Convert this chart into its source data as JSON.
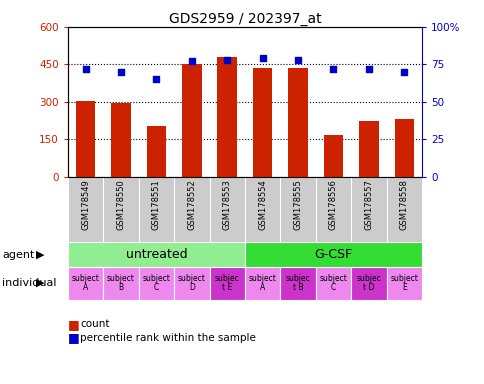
{
  "title": "GDS2959 / 202397_at",
  "samples": [
    "GSM178549",
    "GSM178550",
    "GSM178551",
    "GSM178552",
    "GSM178553",
    "GSM178554",
    "GSM178555",
    "GSM178556",
    "GSM178557",
    "GSM178558"
  ],
  "bar_values": [
    305,
    297,
    205,
    450,
    480,
    435,
    435,
    168,
    225,
    230
  ],
  "dot_values_pct": [
    72,
    70,
    65,
    77,
    78,
    79,
    78,
    72,
    72,
    70
  ],
  "bar_color": "#cc2200",
  "dot_color": "#0000cc",
  "ylim_left": [
    0,
    600
  ],
  "ylim_right": [
    0,
    100
  ],
  "yticks_left": [
    0,
    150,
    300,
    450,
    600
  ],
  "yticks_right": [
    0,
    25,
    50,
    75,
    100
  ],
  "agent_groups": [
    {
      "label": "untreated",
      "start": 0,
      "end": 5,
      "color": "#90ee90"
    },
    {
      "label": "G-CSF",
      "start": 5,
      "end": 10,
      "color": "#33dd33"
    }
  ],
  "individual_labels": [
    "subject\nA",
    "subject\nB",
    "subject\nC",
    "subject\nD",
    "subjec\nt E",
    "subject\nA",
    "subjec\nt B",
    "subject\nC",
    "subjec\nt D",
    "subject\nE"
  ],
  "individual_highlight": [
    4,
    6,
    8
  ],
  "individual_color_normal": "#ee88ee",
  "individual_color_highlight": "#cc33cc",
  "agent_label": "agent",
  "individual_label": "individual",
  "legend_count": "count",
  "legend_pct": "percentile rank within the sample",
  "tick_label_color_left": "#cc2200",
  "tick_label_color_right": "#0000cc",
  "background_plot": "#ffffff",
  "background_sample": "#cccccc",
  "hgrid_values": [
    150,
    300,
    450
  ]
}
